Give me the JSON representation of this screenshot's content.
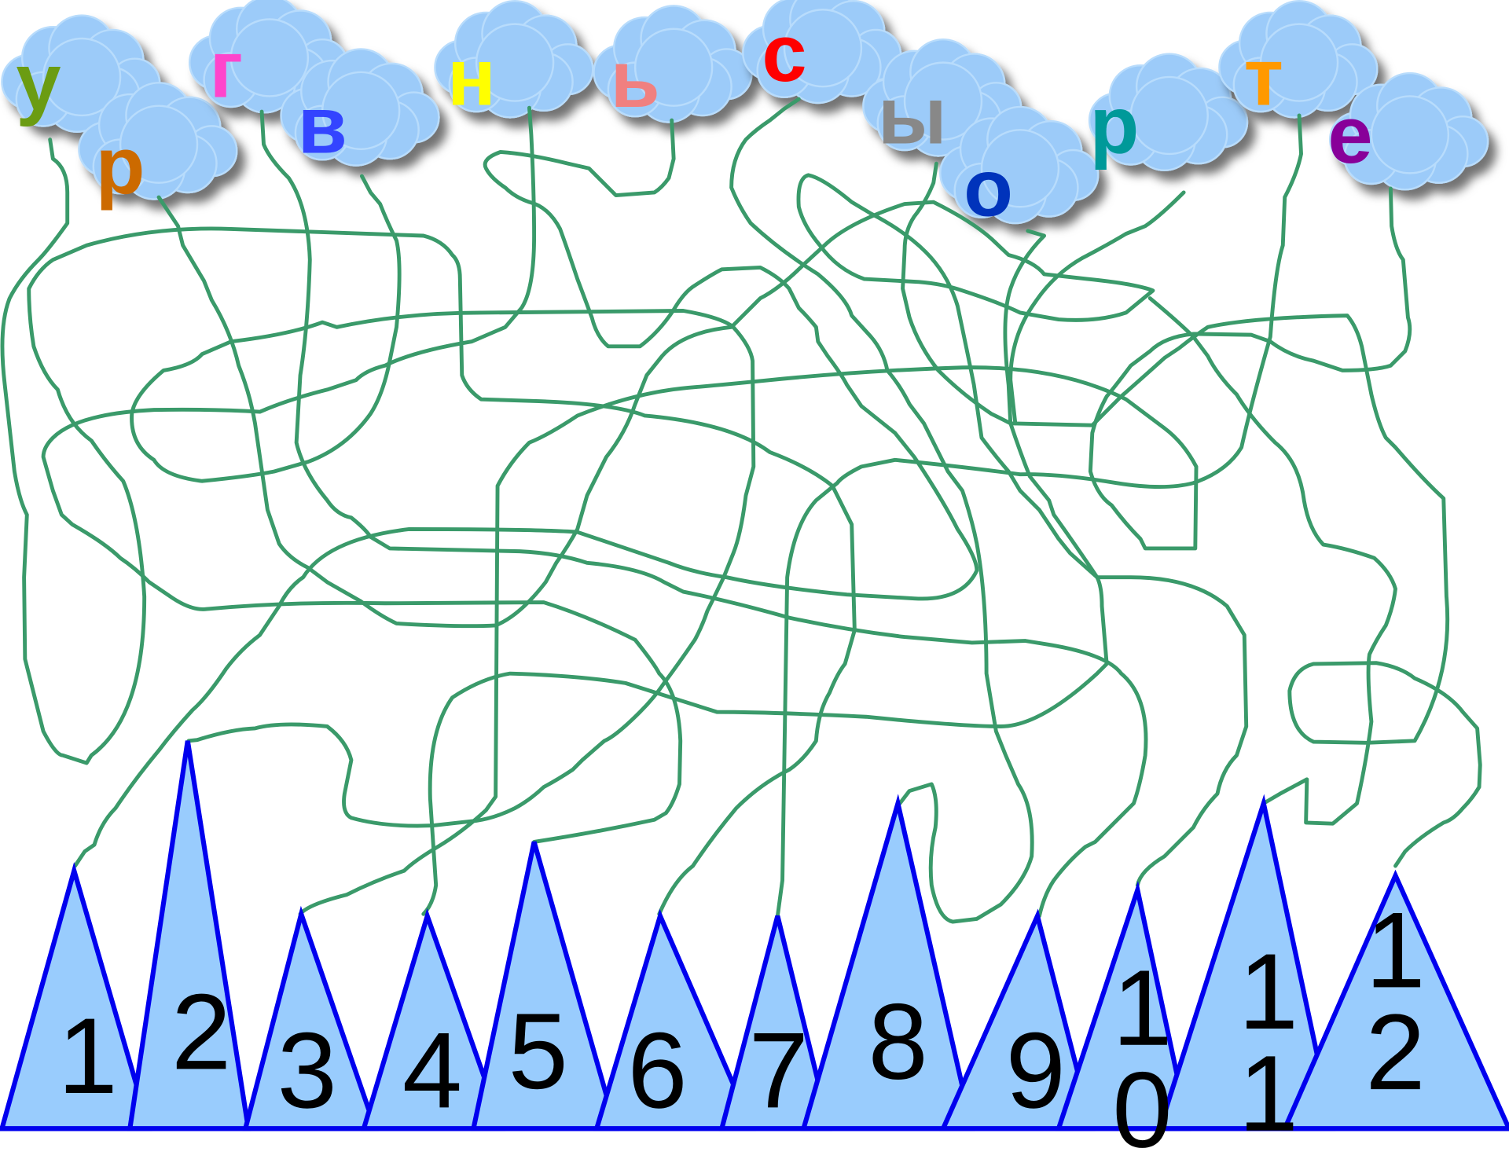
{
  "letters": [
    {
      "text": "у",
      "color": "#6b9c12"
    },
    {
      "text": "р",
      "color": "#cc6a00"
    },
    {
      "text": "г",
      "color": "#ff44cc"
    },
    {
      "text": "в",
      "color": "#3344ff"
    },
    {
      "text": "н",
      "color": "#ffff00"
    },
    {
      "text": "ь",
      "color": "#f08080"
    },
    {
      "text": "с",
      "color": "#ff0000"
    },
    {
      "text": "ы",
      "color": "#888888"
    },
    {
      "text": "о",
      "color": "#0033bb"
    },
    {
      "text": "р",
      "color": "#009999"
    },
    {
      "text": "т",
      "color": "#ff9900"
    },
    {
      "text": "е",
      "color": "#880099"
    }
  ],
  "numbers": [
    1,
    2,
    3,
    4,
    5,
    6,
    7,
    8,
    9,
    10,
    11,
    12
  ]
}
